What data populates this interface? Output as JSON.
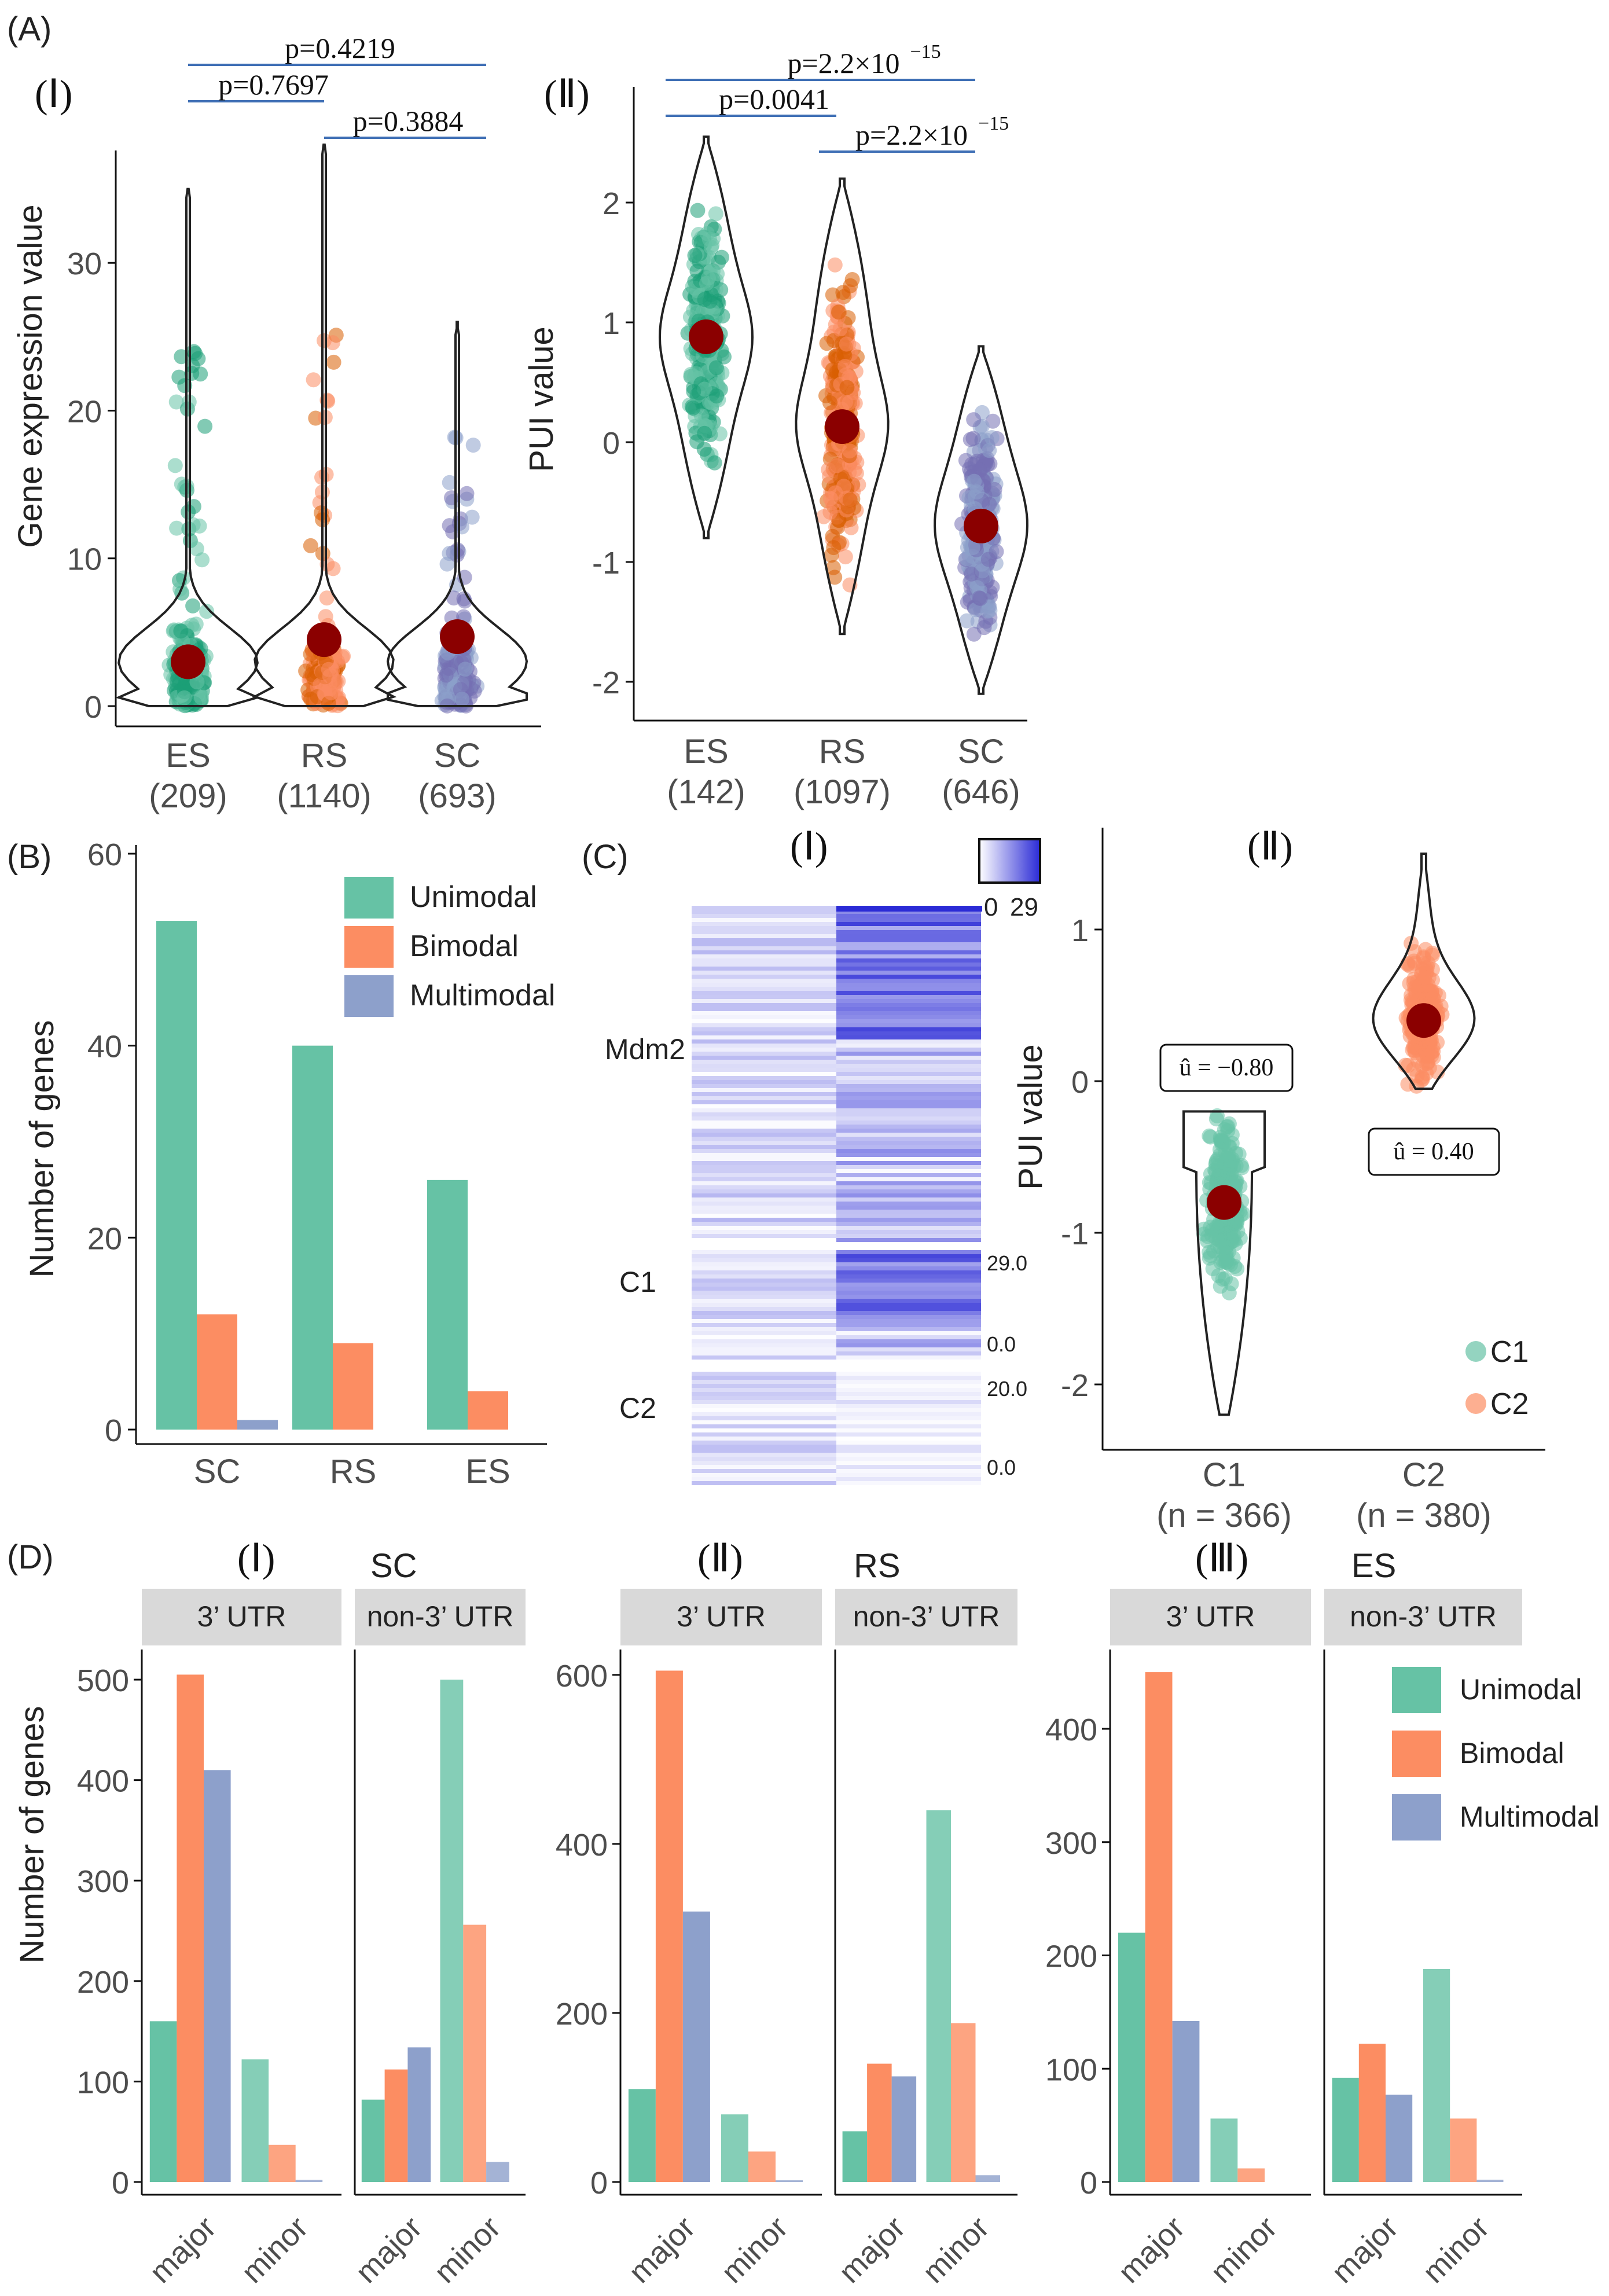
{
  "colors": {
    "green": "#66c2a5",
    "green_dark": "#1b9e77",
    "orange": "#fc8d62",
    "orange_dark": "#d95f02",
    "purple": "#8da0cb",
    "purple_dark": "#7570b3",
    "mean": "#8b0000",
    "pline": "#3f6fb5",
    "strip": "#d9d9d9",
    "heat": "#2b2bd6"
  },
  "labels": {
    "A": "(A)",
    "B": "(B)",
    "C": "(C)",
    "D": "(D)",
    "A1": "(Ⅰ)",
    "A2": "(Ⅱ)",
    "C1": "(Ⅰ)",
    "C2": "(Ⅱ)",
    "D1": "(Ⅰ)",
    "D2": "(Ⅱ)",
    "D3": "(Ⅲ)"
  },
  "chart_data": [
    {
      "id": "A1",
      "type": "violin",
      "ylabel": "Gene expression value",
      "ylim": [
        0,
        38
      ],
      "yticks": [
        0,
        10,
        20,
        30
      ],
      "categories": [
        {
          "name": "ES",
          "n": "(209)",
          "mean": 3.0,
          "max": 35,
          "color": "green"
        },
        {
          "name": "RS",
          "n": "(1140)",
          "mean": 4.5,
          "max": 38,
          "color": "orange"
        },
        {
          "name": "SC",
          "n": "(693)",
          "mean": 4.7,
          "max": 26,
          "color": "purple"
        }
      ],
      "pvalues": [
        {
          "from": 0,
          "to": 2,
          "label": "p=0.4219",
          "level": 0
        },
        {
          "from": 0,
          "to": 1,
          "label": "p=0.7697",
          "level": 1
        },
        {
          "from": 1,
          "to": 2,
          "label": "p=0.3884",
          "level": 2
        }
      ]
    },
    {
      "id": "A2",
      "type": "violin",
      "ylabel": "PUI value",
      "ylim": [
        -2.3,
        2.7
      ],
      "yticks": [
        -2,
        -1,
        0,
        1,
        2
      ],
      "categories": [
        {
          "name": "ES",
          "n": "(142)",
          "mean": 0.88,
          "min": -0.8,
          "max": 2.55,
          "color": "green"
        },
        {
          "name": "RS",
          "n": "(1097)",
          "mean": 0.13,
          "min": -1.6,
          "max": 2.2,
          "color": "orange"
        },
        {
          "name": "SC",
          "n": "(646)",
          "mean": -0.7,
          "min": -2.1,
          "max": 0.8,
          "color": "purple"
        }
      ],
      "pvalues": [
        {
          "from": 0,
          "to": 2,
          "label": "p=2.2×10",
          "exp": "−15",
          "level": 0
        },
        {
          "from": 0,
          "to": 1,
          "label": "p=0.0041",
          "exp": "",
          "level": 1
        },
        {
          "from": 1,
          "to": 2,
          "label": "p=2.2×10",
          "exp": "−15",
          "level": 2
        }
      ]
    },
    {
      "id": "B",
      "type": "bar",
      "ylabel": "Number of genes",
      "ylim": [
        0,
        60
      ],
      "yticks": [
        0,
        20,
        40,
        60
      ],
      "categories": [
        "SC",
        "RS",
        "ES"
      ],
      "series": [
        {
          "name": "Unimodal",
          "color": "green",
          "values": [
            53,
            40,
            26
          ]
        },
        {
          "name": "Bimodal",
          "color": "orange",
          "values": [
            12,
            9,
            4
          ]
        },
        {
          "name": "Multimodal",
          "color": "purple",
          "values": [
            1,
            0,
            0
          ]
        }
      ],
      "legend": "top-right"
    },
    {
      "id": "C1",
      "type": "heatmap",
      "colorbar": {
        "min": "0",
        "max": "29"
      },
      "row_labels": [
        "Mdm2",
        "C1",
        "C2"
      ],
      "scales": [
        {
          "max": "29.0",
          "min": "0.0"
        },
        {
          "max": "20.0",
          "min": "0.0"
        }
      ]
    },
    {
      "id": "C2",
      "type": "violin",
      "ylabel": "PUI value",
      "ylim": [
        -2.3,
        1.6
      ],
      "yticks": [
        -2,
        -1,
        0,
        1
      ],
      "categories": [
        {
          "name": "C1",
          "n": "(n = 366)",
          "mean": -0.8,
          "min": -2.2,
          "max": -0.2,
          "color": "green",
          "annot": "û = −0.80"
        },
        {
          "name": "C2",
          "n": "(n = 380)",
          "mean": 0.4,
          "min": -0.05,
          "max": 1.5,
          "color": "orange",
          "annot": "û = 0.40"
        }
      ],
      "legend": [
        "C1",
        "C2"
      ]
    },
    {
      "id": "D",
      "type": "bar",
      "ylabel": "Number of genes",
      "facets": [
        "3’ UTR",
        "non-3’ UTR"
      ],
      "categories": [
        "major",
        "minor"
      ],
      "series_names": [
        "Unimodal",
        "Bimodal",
        "Multimodal"
      ],
      "panels": [
        {
          "stage": "SC",
          "ylim": [
            0,
            530
          ],
          "yticks": [
            0,
            100,
            200,
            300,
            400,
            500
          ],
          "utr3": {
            "major": [
              160,
              505,
              410
            ],
            "minor": [
              122,
              37,
              2
            ]
          },
          "non3": {
            "major": [
              82,
              112,
              134
            ],
            "minor": [
              500,
              256,
              20
            ]
          }
        },
        {
          "stage": "RS",
          "ylim": [
            0,
            630
          ],
          "yticks": [
            0,
            200,
            400,
            600
          ],
          "utr3": {
            "major": [
              110,
              605,
              320
            ],
            "minor": [
              80,
              36,
              2
            ]
          },
          "non3": {
            "major": [
              60,
              140,
              125
            ],
            "minor": [
              440,
              188,
              8
            ]
          }
        },
        {
          "stage": "ES",
          "ylim": [
            0,
            470
          ],
          "yticks": [
            0,
            100,
            200,
            300,
            400
          ],
          "utr3": {
            "major": [
              220,
              450,
              142
            ],
            "minor": [
              56,
              12,
              0
            ]
          },
          "non3": {
            "major": [
              92,
              122,
              77
            ],
            "minor": [
              188,
              56,
              2
            ]
          }
        }
      ]
    }
  ]
}
